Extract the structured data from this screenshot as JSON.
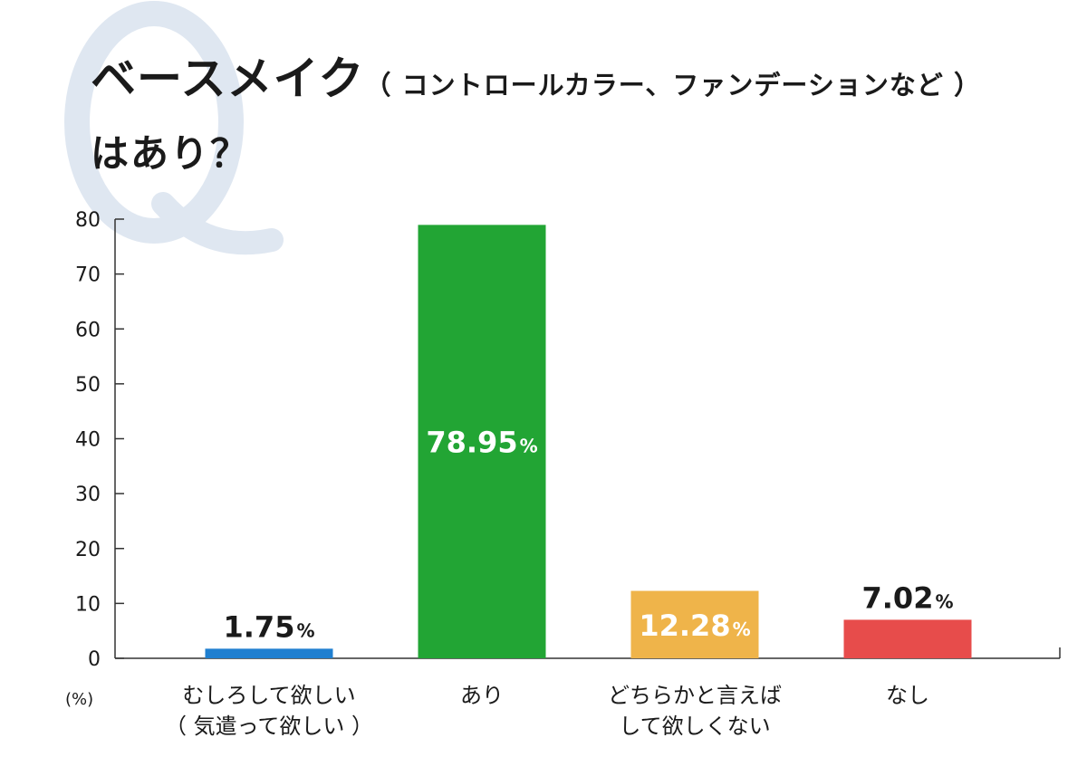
{
  "header": {
    "title_main": "ベースメイク",
    "title_paren": "（ コントロールカラー、ファンデーションなど ）",
    "title_line2": "はあり？"
  },
  "chart_data": {
    "type": "bar",
    "ylabel": "(%)",
    "ylim": [
      0,
      80
    ],
    "yticks": [
      0,
      10,
      20,
      30,
      40,
      50,
      60,
      70,
      80
    ],
    "categories": [
      [
        "むしろして欲しい",
        "（ 気遣って欲しい ）"
      ],
      [
        "あり"
      ],
      [
        "どちらかと言えば",
        "して欲しくない"
      ],
      [
        "なし"
      ]
    ],
    "values": [
      1.75,
      78.95,
      12.28,
      7.02
    ],
    "value_labels": [
      "1.75",
      "78.95",
      "12.28",
      "7.02"
    ],
    "value_unit": "%",
    "colors": [
      "#1f7fd0",
      "#22a534",
      "#efb44a",
      "#e74c4b"
    ],
    "label_inside": [
      false,
      true,
      true,
      false
    ]
  }
}
